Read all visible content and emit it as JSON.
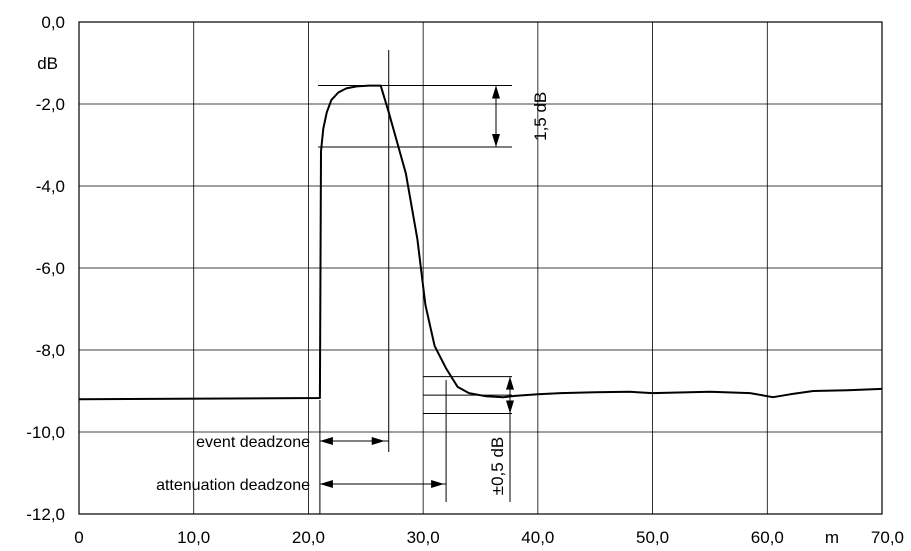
{
  "chart_data": {
    "type": "line",
    "title": "",
    "xlabel": "",
    "ylabel": "dB",
    "x_unit": "m",
    "xlim": [
      0,
      70
    ],
    "ylim": [
      -12,
      0
    ],
    "grid": true,
    "x_ticks": [
      "0",
      "10,0",
      "20,0",
      "30,0",
      "40,0",
      "50,0",
      "60,0",
      "70,0"
    ],
    "x_tick_values": [
      0,
      10,
      20,
      30,
      40,
      50,
      60,
      70
    ],
    "y_ticks": [
      "0,0",
      "-2,0",
      "-4,0",
      "-6,0",
      "-8,0",
      "-10,0",
      "-12,0"
    ],
    "y_tick_values": [
      0,
      -2,
      -4,
      -6,
      -8,
      -10,
      -12
    ],
    "series": [
      {
        "x": [
          0,
          21.0,
          21.1,
          21.3,
          21.6,
          22.0,
          22.6,
          23.3,
          24.2,
          25.3,
          26.3,
          27.0,
          27.8,
          28.5,
          29.5,
          30.2,
          31.0,
          32.0,
          33.0,
          34.0,
          35.5,
          37.0,
          38.0,
          40.0,
          42.0,
          45.0,
          48.0,
          50.0,
          55.0,
          58.5,
          60.5,
          62.0,
          64.0,
          67.0,
          70.0
        ],
        "y": [
          -9.2,
          -9.17,
          -3.15,
          -2.6,
          -2.2,
          -1.9,
          -1.72,
          -1.62,
          -1.57,
          -1.55,
          -1.55,
          -2.2,
          -3.0,
          -3.7,
          -5.3,
          -6.9,
          -7.9,
          -8.45,
          -8.9,
          -9.05,
          -9.13,
          -9.15,
          -9.12,
          -9.08,
          -9.05,
          -9.03,
          -9.02,
          -9.05,
          -9.02,
          -9.05,
          -9.15,
          -9.08,
          -9.0,
          -8.98,
          -8.95
        ]
      }
    ],
    "annotations": {
      "vertical_marker_x": 27.0,
      "range_1_5": {
        "label": "1,5 dB",
        "y_top": -1.55,
        "y_bottom": -3.05
      },
      "range_0_5": {
        "label": "±0,5 dB",
        "y_top": -8.65,
        "y_mid": -9.1,
        "y_bottom": -9.55
      },
      "event_deadzone": {
        "label": "event deadzone",
        "x_start": 21.0,
        "x_end": 27.0
      },
      "attenuation_deadzone": {
        "label": "attenuation deadzone",
        "x_start": 21.0,
        "x_end": 32.0
      }
    }
  }
}
